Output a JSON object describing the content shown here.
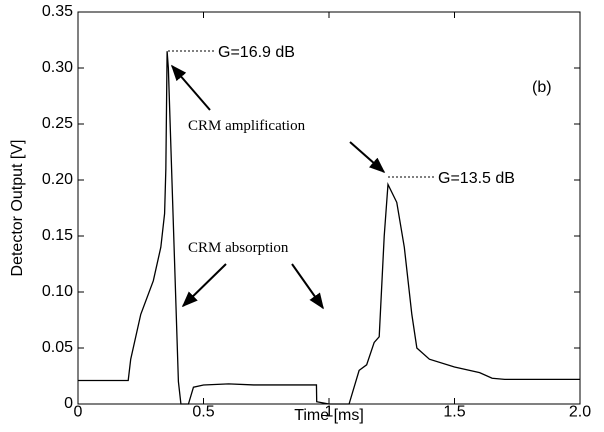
{
  "chart_data": {
    "type": "line",
    "x_label": "Time [ms]",
    "y_label": "Detector Output [V]",
    "color": "#000000",
    "x": [
      0,
      0.2,
      0.21,
      0.25,
      0.3,
      0.33,
      0.345,
      0.35,
      0.355,
      0.36,
      0.4,
      0.41,
      0.44,
      0.46,
      0.5,
      0.6,
      0.7,
      0.8,
      0.95,
      0.951,
      1.0,
      1.08,
      1.1,
      1.12,
      1.15,
      1.18,
      1.2,
      1.22,
      1.235,
      1.27,
      1.3,
      1.33,
      1.35,
      1.4,
      1.5,
      1.6,
      1.65,
      1.7,
      2.0
    ],
    "values": [
      0.021,
      0.021,
      0.04,
      0.08,
      0.11,
      0.14,
      0.17,
      0.21,
      0.315,
      0.3,
      0.02,
      0.0,
      0.0,
      0.015,
      0.017,
      0.018,
      0.017,
      0.017,
      0.017,
      0.002,
      0.0,
      0.0,
      0.015,
      0.03,
      0.035,
      0.055,
      0.06,
      0.15,
      0.196,
      0.18,
      0.14,
      0.08,
      0.05,
      0.04,
      0.033,
      0.028,
      0.023,
      0.022,
      0.022
    ],
    "xlim": [
      0,
      2
    ],
    "xticks": [
      0,
      0.5,
      1,
      1.5,
      {
        "value": 2,
        "label": "2.0"
      }
    ],
    "ylim": [
      0,
      0.35
    ],
    "yticks": [
      0,
      0.05,
      {
        "value": 0.1,
        "label": "0.10"
      },
      0.15,
      {
        "value": 0.2,
        "label": "0.20"
      },
      0.25,
      {
        "value": 0.3,
        "label": "0.30"
      },
      0.35
    ],
    "annotations": [
      "G=16.9 dB",
      "G=13.5 dB",
      "(b)",
      "CRM amplification",
      "CRM absorption"
    ]
  }
}
